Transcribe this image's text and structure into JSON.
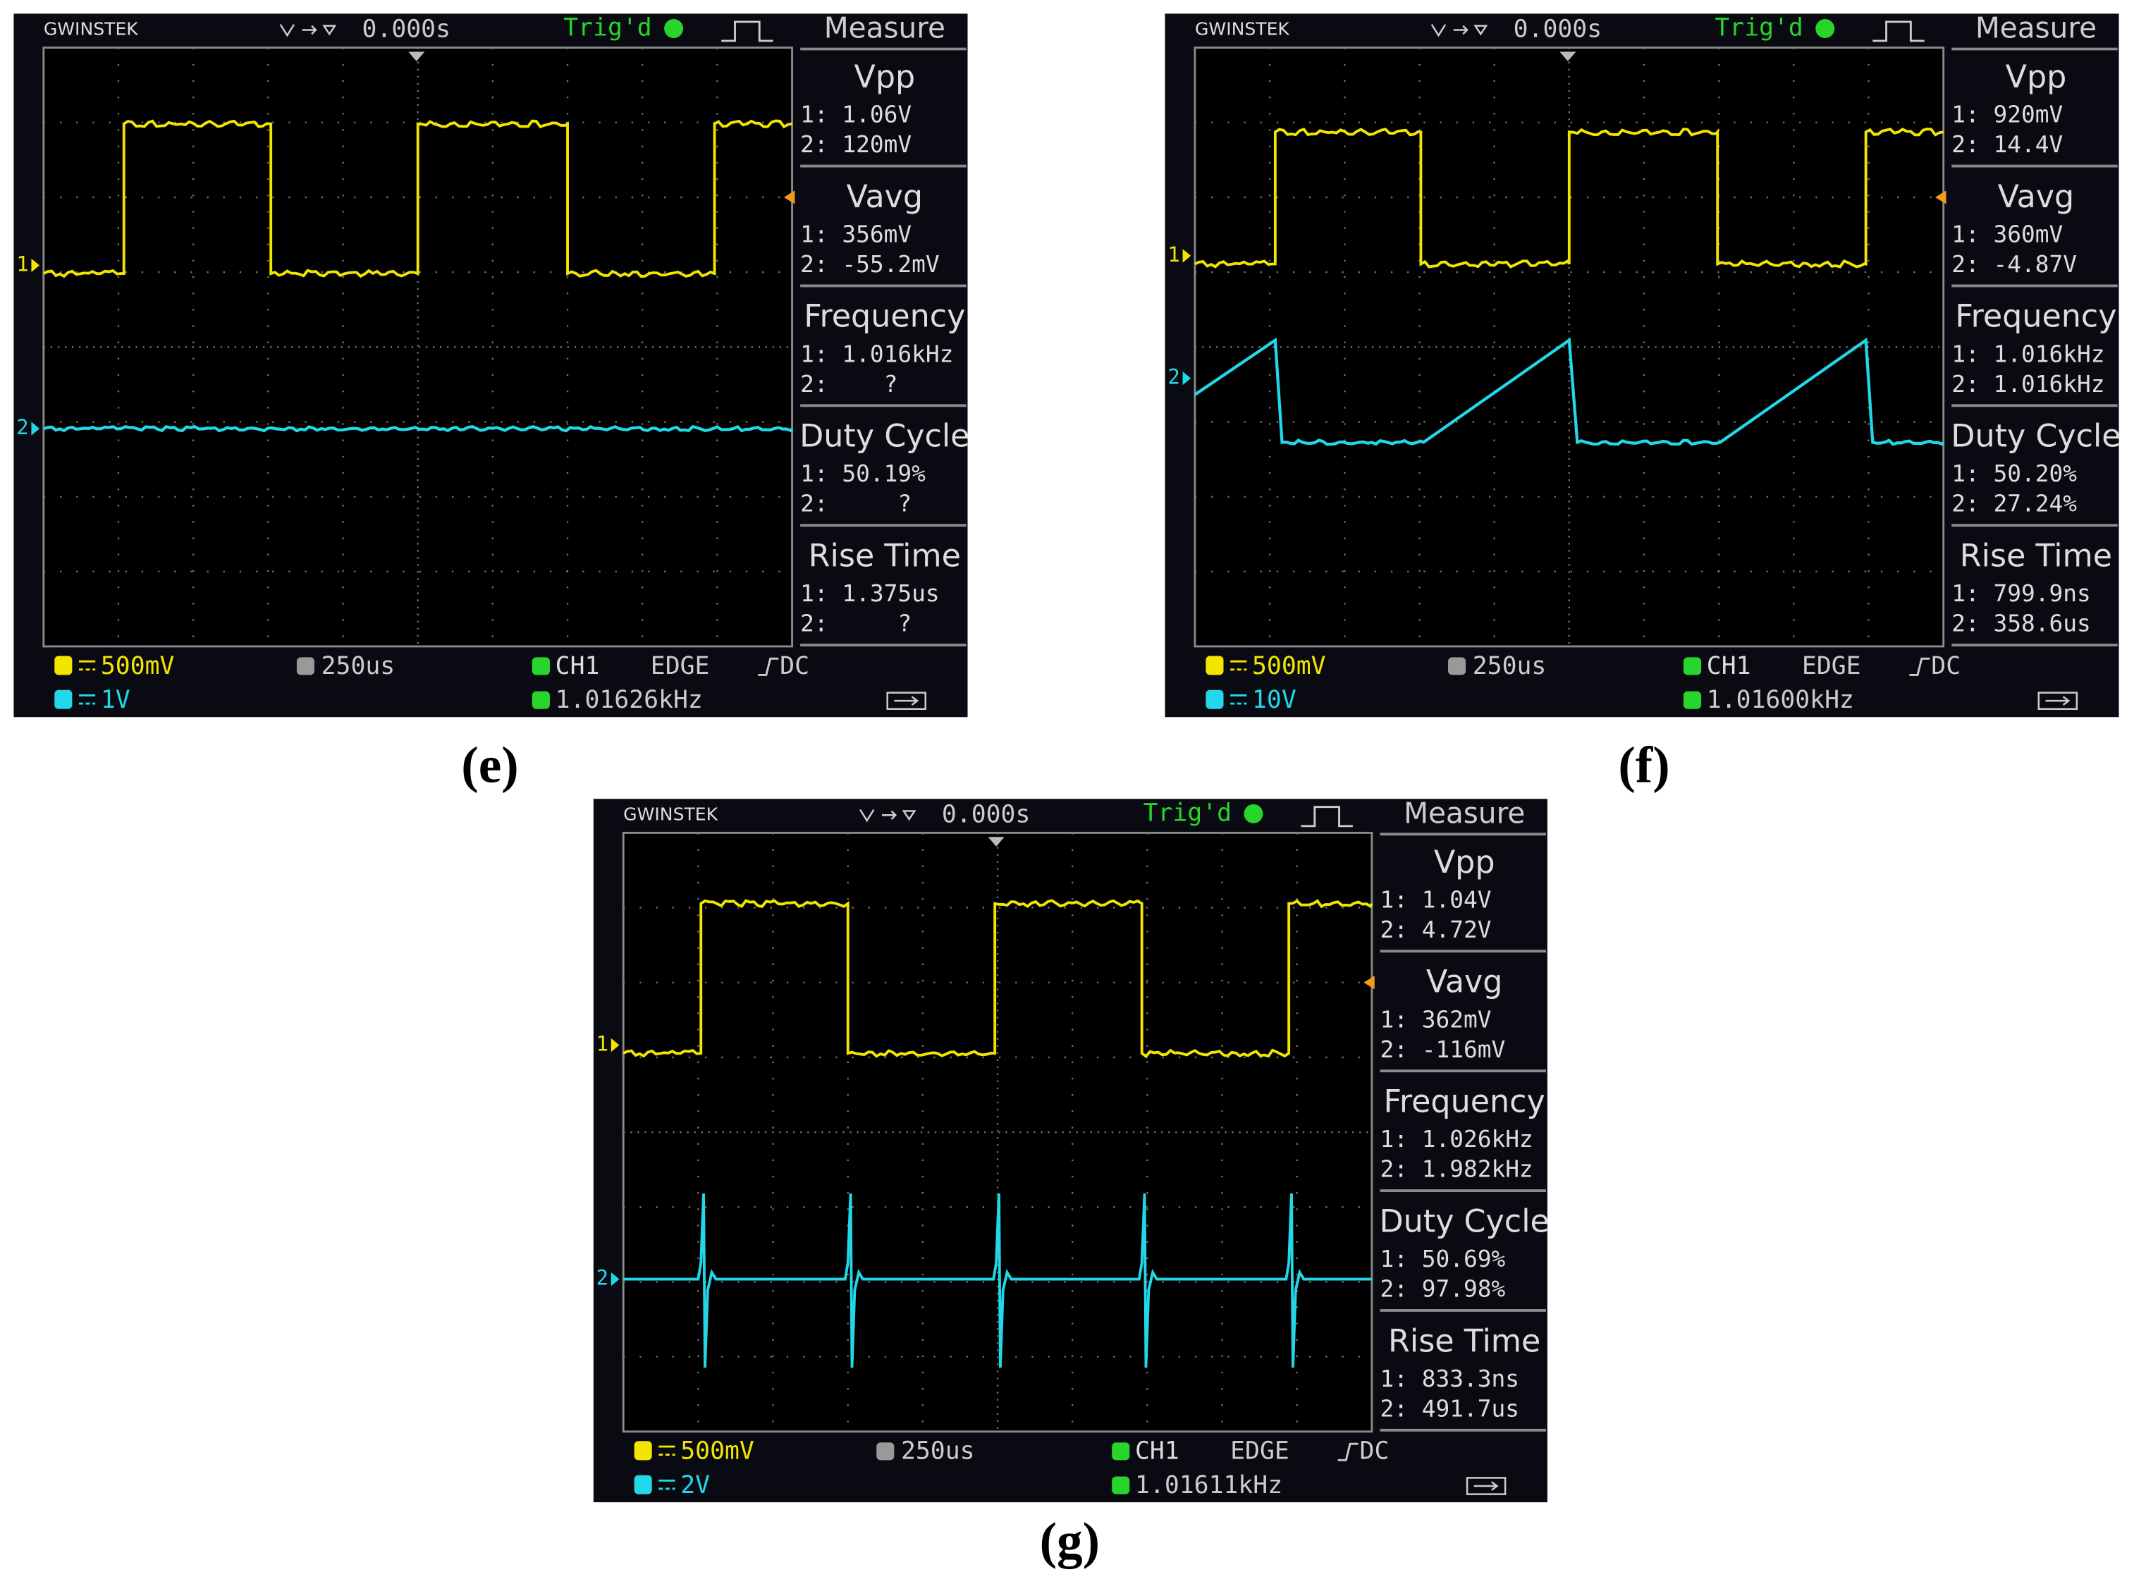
{
  "panels": [
    {
      "caption": "(e)",
      "header": {
        "brand": "GWINSTEK",
        "delay": "0.000s",
        "trigger_status": "Trig'd",
        "menu": "Measure"
      },
      "markers": {
        "ch1": "1",
        "ch2": "2"
      },
      "measurements": [
        {
          "name": "Vpp",
          "ch1": "1: 1.06V",
          "ch2": "2: 120mV"
        },
        {
          "name": "Vavg",
          "ch1": "1: 356mV",
          "ch2": "2: -55.2mV"
        },
        {
          "name": "Frequency",
          "ch1": "1: 1.016kHz",
          "ch2": "2:    ?"
        },
        {
          "name": "Duty Cycle",
          "ch1": "1: 50.19%",
          "ch2": "2:     ?"
        },
        {
          "name": "Rise Time",
          "ch1": "1: 1.375us",
          "ch2": "2:     ?"
        }
      ],
      "footer": {
        "ch1_scale": "500mV",
        "ch2_scale": "1V",
        "timebase": "250us",
        "trigger_source": "CH1",
        "trigger_type": "EDGE",
        "coupling": "DC",
        "trigger_frequency": "1.01626kHz"
      }
    },
    {
      "caption": "(f)",
      "header": {
        "brand": "GWINSTEK",
        "delay": "0.000s",
        "trigger_status": "Trig'd",
        "menu": "Measure"
      },
      "markers": {
        "ch1": "1",
        "ch2": "2"
      },
      "measurements": [
        {
          "name": "Vpp",
          "ch1": "1: 920mV",
          "ch2": "2: 14.4V"
        },
        {
          "name": "Vavg",
          "ch1": "1: 360mV",
          "ch2": "2: -4.87V"
        },
        {
          "name": "Frequency",
          "ch1": "1: 1.016kHz",
          "ch2": "2: 1.016kHz"
        },
        {
          "name": "Duty Cycle",
          "ch1": "1: 50.20%",
          "ch2": "2: 27.24%"
        },
        {
          "name": "Rise Time",
          "ch1": "1: 799.9ns",
          "ch2": "2: 358.6us"
        }
      ],
      "footer": {
        "ch1_scale": "500mV",
        "ch2_scale": "10V",
        "timebase": "250us",
        "trigger_source": "CH1",
        "trigger_type": "EDGE",
        "coupling": "DC",
        "trigger_frequency": "1.01600kHz"
      }
    },
    {
      "caption": "(g)",
      "header": {
        "brand": "GWINSTEK",
        "delay": "0.000s",
        "trigger_status": "Trig'd",
        "menu": "Measure"
      },
      "markers": {
        "ch1": "1",
        "ch2": "2"
      },
      "measurements": [
        {
          "name": "Vpp",
          "ch1": "1: 1.04V",
          "ch2": "2: 4.72V"
        },
        {
          "name": "Vavg",
          "ch1": "1: 362mV",
          "ch2": "2: -116mV"
        },
        {
          "name": "Frequency",
          "ch1": "1: 1.026kHz",
          "ch2": "2: 1.982kHz"
        },
        {
          "name": "Duty Cycle",
          "ch1": "1: 50.69%",
          "ch2": "2: 97.98%"
        },
        {
          "name": "Rise Time",
          "ch1": "1: 833.3ns",
          "ch2": "2: 491.7us"
        }
      ],
      "footer": {
        "ch1_scale": "500mV",
        "ch2_scale": "2V",
        "timebase": "250us",
        "trigger_source": "CH1",
        "trigger_type": "EDGE",
        "coupling": "DC",
        "trigger_frequency": "1.01611kHz"
      }
    }
  ]
}
